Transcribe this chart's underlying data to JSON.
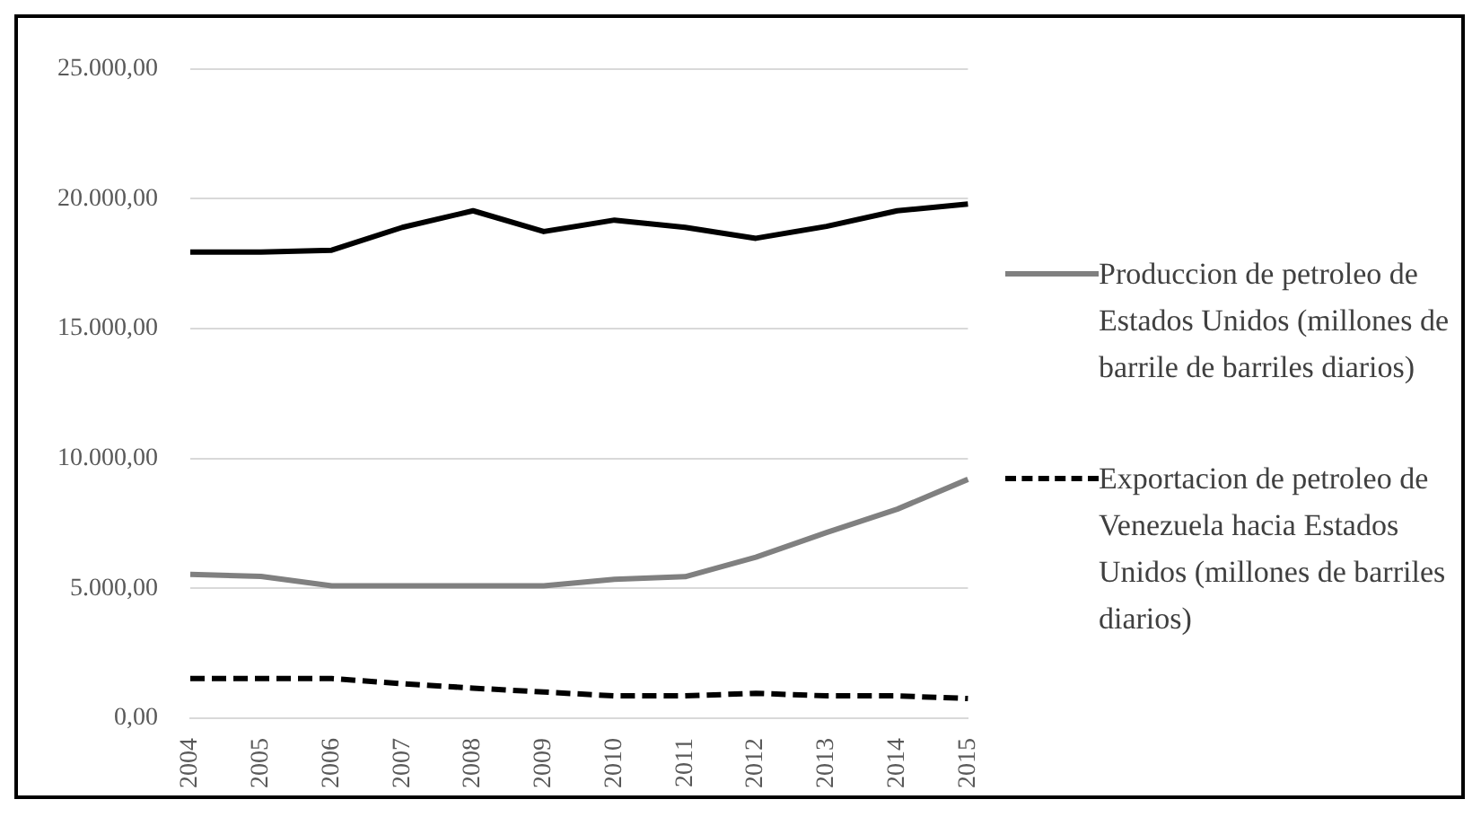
{
  "chart_data": {
    "type": "line",
    "categories": [
      "2004",
      "2005",
      "2006",
      "2007",
      "2008",
      "2009",
      "2010",
      "2011",
      "2012",
      "2013",
      "2014",
      "2015"
    ],
    "series": [
      {
        "color": "#000000",
        "line_style": "solid",
        "values": [
          17950,
          17950,
          18020,
          18900,
          19540,
          18740,
          19180,
          18900,
          18480,
          18940,
          19540,
          19800
        ]
      },
      {
        "name": "Produccion de petroleo de Estados Unidos (millones de barrile de barriles diarios)",
        "color": "#808080",
        "line_style": "solid",
        "values": [
          5540,
          5460,
          5100,
          5100,
          5100,
          5100,
          5350,
          5450,
          6200,
          7150,
          8050,
          9200
        ]
      },
      {
        "name": "Exportacion de petroleo de Venezuela hacia Estados Unidos (millones de barriles diarios)",
        "color": "#000000",
        "line_style": "dashed",
        "values": [
          1530,
          1530,
          1530,
          1330,
          1160,
          1010,
          860,
          860,
          960,
          860,
          860,
          760
        ]
      }
    ],
    "ylim": [
      0,
      25000
    ],
    "yticks": [
      {
        "value": 0,
        "label": "0,00"
      },
      {
        "value": 5000,
        "label": "5.000,00"
      },
      {
        "value": 10000,
        "label": "10.000,00"
      },
      {
        "value": 15000,
        "label": "15.000,00"
      },
      {
        "value": 20000,
        "label": "20.000,00"
      },
      {
        "value": 25000,
        "label": "25.000,00"
      }
    ],
    "grid": "y",
    "legend": "right",
    "marker": "none"
  }
}
